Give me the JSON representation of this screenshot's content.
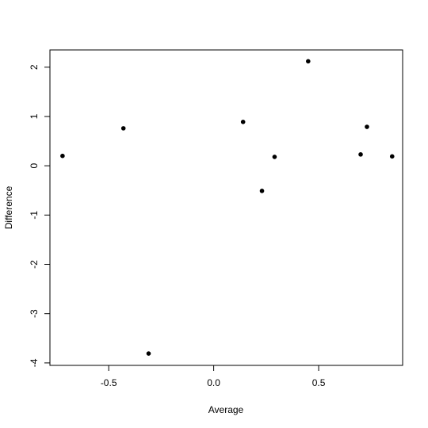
{
  "chart_data": {
    "type": "scatter",
    "title": "",
    "xlabel": "Average",
    "ylabel": "Difference",
    "xlim": [
      -0.78,
      0.9
    ],
    "ylim": [
      -4.05,
      2.35
    ],
    "x_ticks": [
      -0.5,
      0.0,
      0.5
    ],
    "x_tick_labels": [
      "-0.5",
      "0.0",
      "0.5"
    ],
    "y_ticks": [
      -4,
      -3,
      -2,
      -1,
      0,
      1,
      2
    ],
    "y_tick_labels": [
      "-4",
      "-3",
      "-2",
      "-1",
      "0",
      "1",
      "2"
    ],
    "grid": false,
    "legend": "none",
    "point_color": "#000000",
    "points": [
      {
        "x": -0.72,
        "y": 0.2
      },
      {
        "x": -0.43,
        "y": 0.76
      },
      {
        "x": -0.31,
        "y": -3.81
      },
      {
        "x": 0.14,
        "y": 0.89
      },
      {
        "x": 0.23,
        "y": -0.51
      },
      {
        "x": 0.29,
        "y": 0.18
      },
      {
        "x": 0.45,
        "y": 2.12
      },
      {
        "x": 0.7,
        "y": 0.23
      },
      {
        "x": 0.73,
        "y": 0.79
      },
      {
        "x": 0.85,
        "y": 0.19
      }
    ]
  }
}
